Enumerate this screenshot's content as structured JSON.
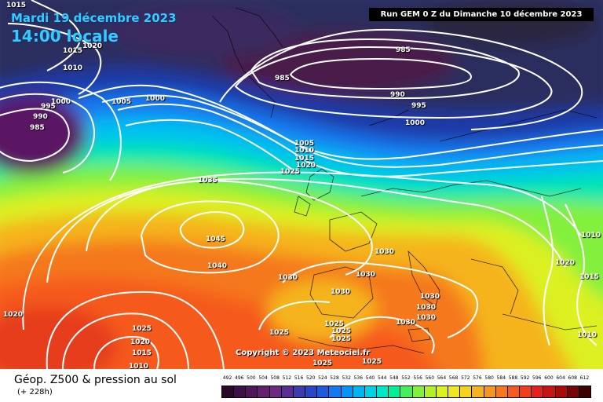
{
  "header": {
    "date": "Mardi 19 décembre 2023",
    "time": "14:00 locale",
    "run": "Run GEM 0 Z du Dimanche 10 décembre 2023"
  },
  "copyright": "Copyright © 2023 Meteociel.fr",
  "footer": {
    "title": "Géop. Z500 & pression au sol",
    "subtitle": "(+ 228h)"
  },
  "legend": {
    "ticks": [
      "492",
      "496",
      "500",
      "504",
      "508",
      "512",
      "516",
      "520",
      "524",
      "528",
      "532",
      "536",
      "540",
      "544",
      "548",
      "552",
      "556",
      "560",
      "564",
      "568",
      "572",
      "576",
      "580",
      "584",
      "588",
      "592",
      "596",
      "600",
      "604",
      "608",
      "612"
    ],
    "colors": [
      "#280a28",
      "#3c0f46",
      "#50145a",
      "#641e6e",
      "#6e2a82",
      "#5a2d96",
      "#3c3caa",
      "#2846c8",
      "#1e5adc",
      "#1478f0",
      "#0096fa",
      "#00b4f0",
      "#00d2e6",
      "#00e6c8",
      "#00f096",
      "#46f05a",
      "#82f03c",
      "#b4f028",
      "#dcf020",
      "#f0e61e",
      "#f5d21e",
      "#f5b41e",
      "#f5961e",
      "#f5781e",
      "#f55a1e",
      "#f03c1e",
      "#e61e1e",
      "#c81414",
      "#aa0a0a",
      "#780505",
      "#3c0000"
    ]
  },
  "isobar_labels": [
    {
      "id": "top-left-1015",
      "text": "1015"
    },
    {
      "id": "top-1020",
      "text": "1020"
    },
    {
      "id": "nw-1015",
      "text": "1015"
    },
    {
      "id": "nw-1010",
      "text": "1010"
    },
    {
      "id": "w-1000",
      "text": "1000"
    },
    {
      "id": "w-995",
      "text": "995"
    },
    {
      "id": "w-990",
      "text": "990"
    },
    {
      "id": "low-985",
      "text": "985"
    },
    {
      "id": "nc-1005",
      "text": "1005"
    },
    {
      "id": "nc-1000",
      "text": "1000"
    },
    {
      "id": "ne-985",
      "text": "985"
    },
    {
      "id": "low-center-985",
      "text": "985"
    },
    {
      "id": "ne-990",
      "text": "990"
    },
    {
      "id": "ne-995",
      "text": "995"
    },
    {
      "id": "ne-1000",
      "text": "1000"
    },
    {
      "id": "c-1005",
      "text": "1005"
    },
    {
      "id": "c-1010",
      "text": "1010"
    },
    {
      "id": "c-1015",
      "text": "1015"
    },
    {
      "id": "c-1020",
      "text": "1020"
    },
    {
      "id": "c-1025",
      "text": "1025"
    },
    {
      "id": "c-1035",
      "text": "1035"
    },
    {
      "id": "high-1045",
      "text": "1045"
    },
    {
      "id": "c-1040",
      "text": "1040"
    },
    {
      "id": "fr-1030",
      "text": "1030"
    },
    {
      "id": "sp-1030",
      "text": "1030"
    },
    {
      "id": "sp-1030b",
      "text": "1030"
    },
    {
      "id": "it-1030",
      "text": "1030"
    },
    {
      "id": "sp-1030c",
      "text": "1030"
    },
    {
      "id": "med-1030a",
      "text": "1030"
    },
    {
      "id": "med-1030b",
      "text": "1030"
    },
    {
      "id": "med-1030c",
      "text": "1030"
    },
    {
      "id": "e-1010",
      "text": "1010"
    },
    {
      "id": "e-1020",
      "text": "1020"
    },
    {
      "id": "e-1015",
      "text": "1015"
    },
    {
      "id": "se-1010",
      "text": "1010"
    },
    {
      "id": "w-1020",
      "text": "1020"
    },
    {
      "id": "sw-1025",
      "text": "1025"
    },
    {
      "id": "sw-1020",
      "text": "1020"
    },
    {
      "id": "sw-1015",
      "text": "1015"
    },
    {
      "id": "sw-1010",
      "text": "1010"
    },
    {
      "id": "s-1025a",
      "text": "1025"
    },
    {
      "id": "s-1025b",
      "text": "1025"
    },
    {
      "id": "s-1025c",
      "text": "1025"
    },
    {
      "id": "s-1025d",
      "text": "1025"
    },
    {
      "id": "s-1025e",
      "text": "1025"
    },
    {
      "id": "s-1025f",
      "text": "1025"
    }
  ]
}
